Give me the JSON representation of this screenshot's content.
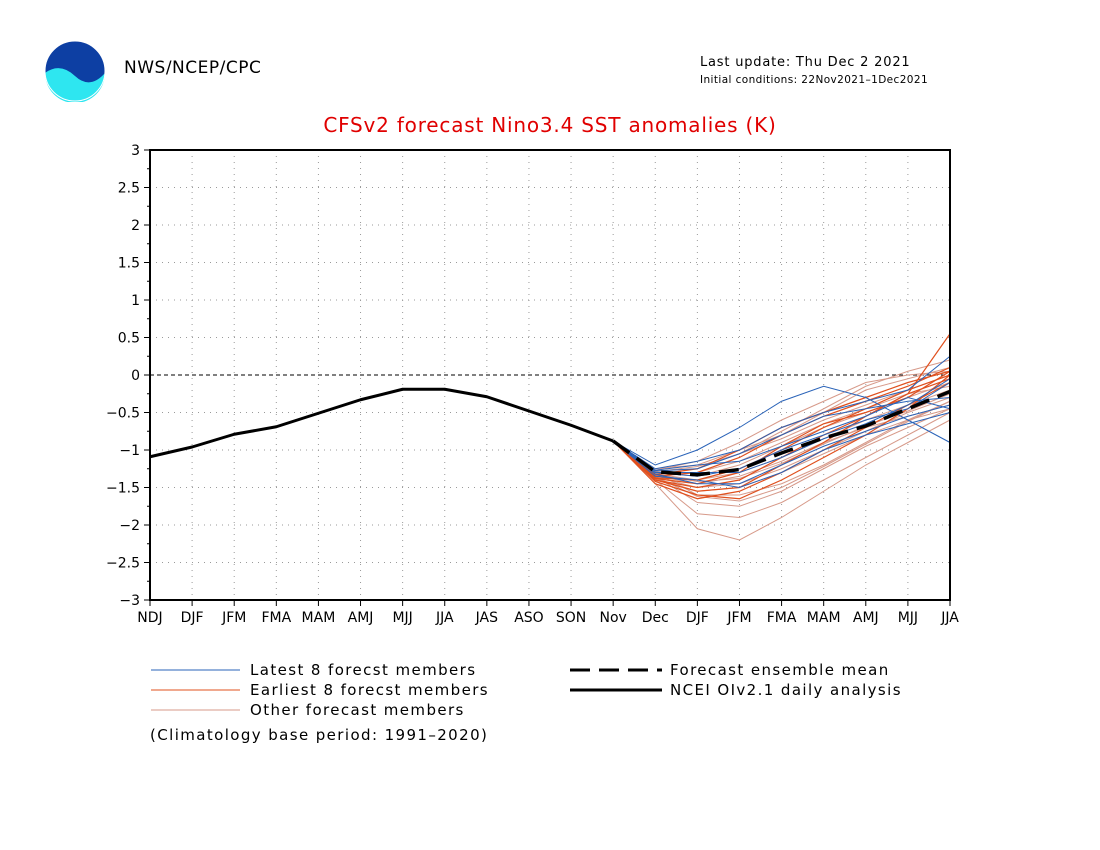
{
  "header": {
    "agency": "NWS/NCEP/CPC",
    "last_update": "Last update: Thu Dec 2 2021",
    "initial_conditions": "Initial conditions: 22Nov2021–1Dec2021",
    "logo_text": "NOAA"
  },
  "legend": {
    "latest": "Latest 8 forecst members",
    "earliest": "Earliest 8 forecst members",
    "other": "Other forecast members",
    "mean": "Forecast ensemble mean",
    "analysis": "NCEI OIv2.1 daily analysis",
    "footnote": "(Climatology base period: 1991–2020)"
  },
  "colors": {
    "title": "#e00000",
    "latest": "#2a63b8",
    "earliest": "#e0501e",
    "other": "#d79a8a",
    "mean": "#000000",
    "analysis": "#000000"
  },
  "chart_data": {
    "type": "line",
    "title": "CFSv2 forecast Nino3.4 SST anomalies (K)",
    "xlabel": "",
    "ylabel": "",
    "categories": [
      "NDJ",
      "DJF",
      "JFM",
      "FMA",
      "MAM",
      "AMJ",
      "MJJ",
      "JJA",
      "JAS",
      "ASO",
      "SON",
      "Nov",
      "Dec",
      "DJF",
      "JFM",
      "FMA",
      "MAM",
      "AMJ",
      "MJJ",
      "JJA"
    ],
    "y_ticks": [
      "3",
      "2.5",
      "2",
      "1.5",
      "1",
      "0.5",
      "0",
      "−0.5",
      "−1",
      "−1.5",
      "−2",
      "−2.5",
      "−3"
    ],
    "ylim": [
      -3,
      3
    ],
    "grid": true,
    "zero_line": true,
    "analysis": {
      "name": "NCEI OIv2.1 daily analysis",
      "values": [
        -1.09,
        -0.96,
        -0.79,
        -0.69,
        -0.51,
        -0.33,
        -0.19,
        -0.19,
        -0.29,
        -0.48,
        -0.67,
        -0.88
      ]
    },
    "forecast_start_index": 11,
    "forecast_categories": [
      "Nov",
      "Dec",
      "DJF",
      "JFM",
      "FMA",
      "MAM",
      "AMJ",
      "MJJ",
      "JJA"
    ],
    "ensemble_mean": {
      "name": "Forecast ensemble mean",
      "values": [
        -0.88,
        -1.29,
        -1.33,
        -1.26,
        -1.04,
        -0.84,
        -0.68,
        -0.45,
        -0.22
      ]
    },
    "members": {
      "latest": [
        [
          -0.88,
          -1.2,
          -1.0,
          -0.7,
          -0.35,
          -0.15,
          -0.3,
          -0.6,
          -0.9
        ],
        [
          -0.88,
          -1.25,
          -1.15,
          -1.0,
          -0.7,
          -0.5,
          -0.35,
          -0.2,
          0.25
        ],
        [
          -0.88,
          -1.28,
          -1.25,
          -1.05,
          -0.8,
          -0.55,
          -0.45,
          -0.35,
          -0.3
        ],
        [
          -0.88,
          -1.3,
          -1.35,
          -1.25,
          -1.0,
          -0.8,
          -0.6,
          -0.45,
          -0.1
        ],
        [
          -0.88,
          -1.32,
          -1.45,
          -1.45,
          -1.2,
          -0.95,
          -0.75,
          -0.55,
          -0.4
        ],
        [
          -0.88,
          -1.35,
          -1.4,
          -1.5,
          -1.3,
          -1.0,
          -0.8,
          -0.65,
          -0.5
        ],
        [
          -0.88,
          -1.3,
          -1.3,
          -1.3,
          -1.1,
          -0.85,
          -0.65,
          -0.4,
          -0.05
        ],
        [
          -0.88,
          -1.27,
          -1.2,
          -1.15,
          -0.95,
          -0.75,
          -0.55,
          -0.3,
          -0.45
        ]
      ],
      "earliest": [
        [
          -0.88,
          -1.4,
          -1.55,
          -1.5,
          -1.2,
          -0.9,
          -0.55,
          -0.25,
          0.55
        ],
        [
          -0.88,
          -1.38,
          -1.45,
          -1.3,
          -0.95,
          -0.65,
          -0.5,
          -0.3,
          0.05
        ],
        [
          -0.88,
          -1.42,
          -1.6,
          -1.65,
          -1.4,
          -1.1,
          -0.8,
          -0.45,
          0.0
        ],
        [
          -0.88,
          -1.35,
          -1.3,
          -1.1,
          -0.8,
          -0.55,
          -0.35,
          -0.15,
          0.1
        ],
        [
          -0.88,
          -1.45,
          -1.65,
          -1.55,
          -1.3,
          -1.0,
          -0.7,
          -0.4,
          -0.1
        ],
        [
          -0.88,
          -1.33,
          -1.25,
          -1.0,
          -0.7,
          -0.5,
          -0.3,
          -0.1,
          0.05
        ],
        [
          -0.88,
          -1.4,
          -1.5,
          -1.4,
          -1.1,
          -0.8,
          -0.55,
          -0.25,
          -0.05
        ],
        [
          -0.88,
          -1.37,
          -1.4,
          -1.25,
          -1.0,
          -0.7,
          -0.45,
          -0.2,
          0.0
        ]
      ],
      "other": [
        [
          -0.88,
          -1.45,
          -2.05,
          -2.2,
          -1.9,
          -1.55,
          -1.2,
          -0.9,
          -0.6
        ],
        [
          -0.88,
          -1.4,
          -1.85,
          -1.9,
          -1.7,
          -1.4,
          -1.1,
          -0.8,
          -0.5
        ],
        [
          -0.88,
          -1.35,
          -1.7,
          -1.75,
          -1.55,
          -1.25,
          -0.95,
          -0.7,
          -0.45
        ],
        [
          -0.88,
          -1.3,
          -1.6,
          -1.6,
          -1.45,
          -1.2,
          -0.9,
          -0.6,
          -0.35
        ],
        [
          -0.88,
          -1.25,
          -1.2,
          -1.0,
          -0.8,
          -0.5,
          -0.2,
          -0.05,
          0.1
        ],
        [
          -0.88,
          -1.28,
          -1.25,
          -1.05,
          -0.75,
          -0.45,
          -0.15,
          0.05,
          0.2
        ],
        [
          -0.88,
          -1.32,
          -1.4,
          -1.3,
          -1.1,
          -0.85,
          -0.6,
          -0.4,
          -0.2
        ],
        [
          -0.88,
          -1.3,
          -1.35,
          -1.2,
          -0.95,
          -0.7,
          -0.5,
          -0.3,
          -0.1
        ],
        [
          -0.88,
          -1.36,
          -1.5,
          -1.45,
          -1.25,
          -1.0,
          -0.75,
          -0.5,
          -0.3
        ],
        [
          -0.88,
          -1.27,
          -1.15,
          -0.9,
          -0.6,
          -0.35,
          -0.1,
          0.0,
          0.05
        ],
        [
          -0.88,
          -1.34,
          -1.45,
          -1.35,
          -1.15,
          -0.9,
          -0.7,
          -0.55,
          -0.4
        ],
        [
          -0.88,
          -1.31,
          -1.3,
          -1.15,
          -0.9,
          -0.65,
          -0.45,
          -0.25,
          -0.15
        ],
        [
          -0.88,
          -1.38,
          -1.55,
          -1.5,
          -1.3,
          -1.05,
          -0.8,
          -0.6,
          -0.45
        ],
        [
          -0.88,
          -1.29,
          -1.22,
          -1.05,
          -0.85,
          -0.6,
          -0.4,
          -0.2,
          0.0
        ],
        [
          -0.88,
          -1.33,
          -1.42,
          -1.38,
          -1.18,
          -0.92,
          -0.68,
          -0.48,
          -0.25
        ],
        [
          -0.88,
          -1.36,
          -1.62,
          -1.68,
          -1.5,
          -1.22,
          -0.92,
          -0.62,
          -0.35
        ]
      ]
    }
  }
}
